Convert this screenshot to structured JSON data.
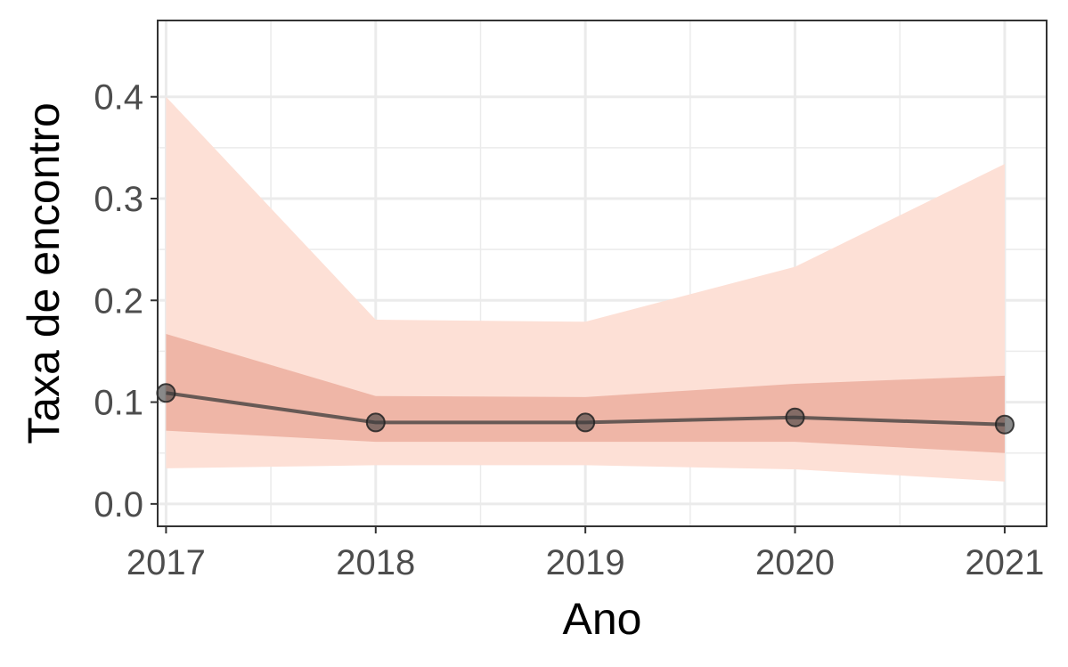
{
  "chart_data": {
    "type": "line",
    "title": "",
    "xlabel": "Ano",
    "ylabel": "Taxa de encontro",
    "x": [
      2017,
      2018,
      2019,
      2020,
      2021
    ],
    "x_tick_labels": [
      "2017",
      "2018",
      "2019",
      "2020",
      "2021"
    ],
    "y_tick_labels": [
      "0.0",
      "0.1",
      "0.2",
      "0.3",
      "0.4"
    ],
    "y_ticks": [
      0.0,
      0.1,
      0.2,
      0.3,
      0.4
    ],
    "xlim": [
      2016.96,
      2021.2
    ],
    "ylim": [
      -0.022,
      0.475
    ],
    "grid": true,
    "legend": "none",
    "series": [
      {
        "type": "line_with_points",
        "values": [
          0.109,
          0.08,
          0.08,
          0.085,
          0.078
        ],
        "color": "#3a3a3a"
      }
    ],
    "bands": [
      {
        "type": "ribbon",
        "lower": [
          0.035,
          0.038,
          0.038,
          0.034,
          0.022
        ],
        "upper": [
          0.4,
          0.181,
          0.179,
          0.233,
          0.334
        ],
        "color": "#fde0d6"
      },
      {
        "type": "ribbon",
        "lower": [
          0.072,
          0.061,
          0.061,
          0.061,
          0.05
        ],
        "upper": [
          0.167,
          0.106,
          0.105,
          0.118,
          0.126
        ],
        "color": "#efb6a7"
      }
    ],
    "colors": {
      "grid": "#ebebeb",
      "panel_border": "#333333",
      "tick": "#333333"
    }
  }
}
